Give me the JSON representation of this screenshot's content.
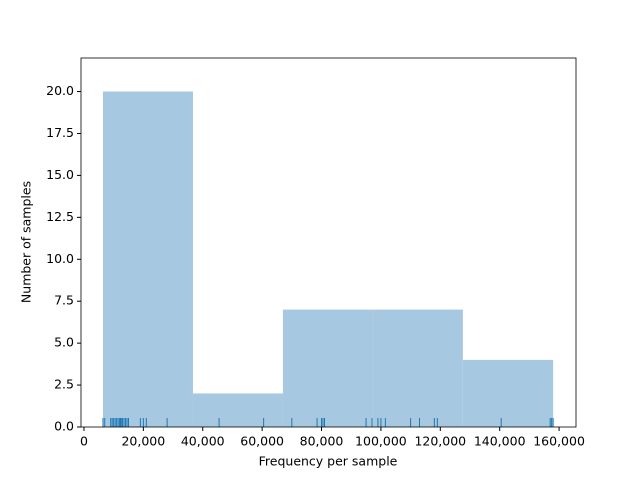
{
  "chart_data": {
    "type": "histogram",
    "x_label": "Frequency per sample",
    "y_label": "Number of samples",
    "bins": [
      6400,
      36700,
      67000,
      97300,
      127600,
      158000
    ],
    "values": [
      20,
      2,
      7,
      7,
      4
    ],
    "color": "#a6c8e0",
    "rug": [
      6400,
      7000,
      9000,
      9500,
      10000,
      10500,
      11000,
      11500,
      12000,
      12300,
      12700,
      13000,
      13500,
      14000,
      14500,
      15000,
      19000,
      20000,
      21000,
      28000,
      45500,
      60500,
      70000,
      78500,
      80000,
      80500,
      81000,
      95000,
      97000,
      99000,
      100000,
      101500,
      110000,
      113000,
      118000,
      119000,
      140500,
      157000,
      157500,
      158000
    ],
    "rug_color": "#1f77b4",
    "xlim": [
      -1000,
      165700
    ],
    "ylim": [
      0,
      22
    ],
    "xticks": [
      0,
      {
        "value": 20000,
        "label": "20,000"
      },
      {
        "value": 40000,
        "label": "40,000"
      },
      {
        "value": 60000,
        "label": "60,000"
      },
      {
        "value": 80000,
        "label": "80,000"
      },
      {
        "value": 100000,
        "label": "100,000"
      },
      {
        "value": 120000,
        "label": "120,000"
      },
      {
        "value": 140000,
        "label": "140,000"
      },
      {
        "value": 160000,
        "label": "160,000"
      }
    ],
    "yticks": [
      {
        "value": 0,
        "label": "0.0"
      },
      {
        "value": 2.5,
        "label": "2.5"
      },
      {
        "value": 5,
        "label": "5.0"
      },
      {
        "value": 7.5,
        "label": "7.5"
      },
      {
        "value": 10,
        "label": "10.0"
      },
      {
        "value": 12.5,
        "label": "12.5"
      },
      {
        "value": 15,
        "label": "15.0"
      },
      {
        "value": 17.5,
        "label": "17.5"
      },
      {
        "value": 20,
        "label": "20.0"
      }
    ]
  }
}
